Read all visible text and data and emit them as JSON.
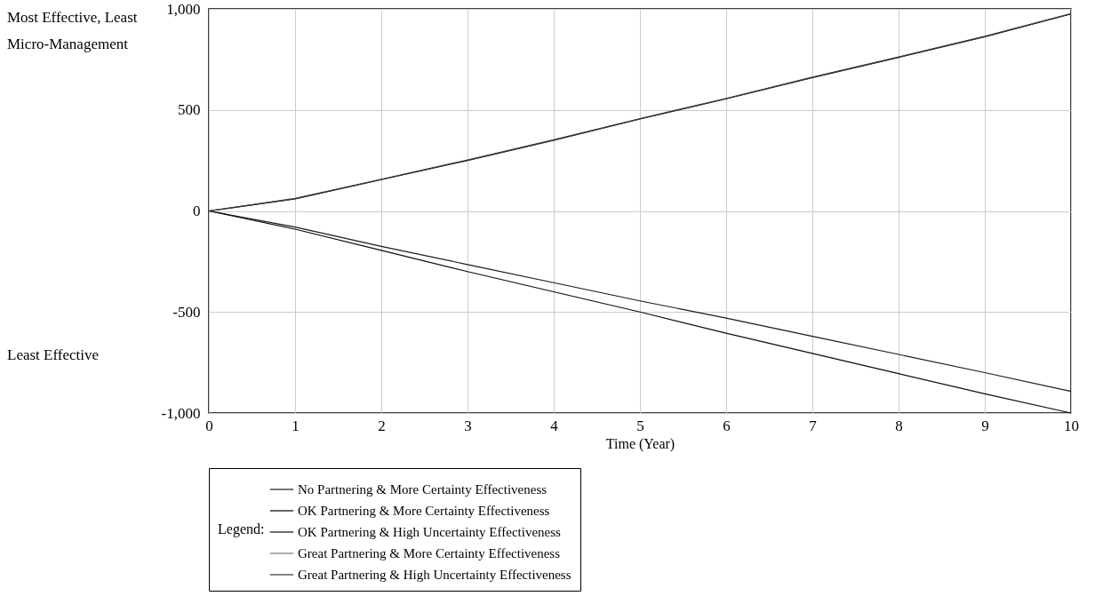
{
  "chart_data": {
    "type": "line",
    "xlabel": "Time (Year)",
    "legend_title": "Legend:",
    "annotations": [
      "Most Effective, Least Micro-Management",
      "Least Effective"
    ],
    "x": [
      0,
      1,
      2,
      3,
      4,
      5,
      6,
      7,
      8,
      9,
      10
    ],
    "xlim": [
      0,
      10
    ],
    "xticks": [
      0,
      1,
      2,
      3,
      4,
      5,
      6,
      7,
      8,
      9,
      10
    ],
    "ylim": [
      -1000,
      1000
    ],
    "yticks": [
      {
        "value": -1000,
        "label": "-1,000"
      },
      {
        "value": -500,
        "label": "-500"
      },
      0,
      {
        "value": 500,
        "label": "500"
      },
      {
        "value": 1000,
        "label": "1,000"
      }
    ],
    "grid": true,
    "legend": "bottom",
    "line_style": "solid",
    "series": [
      {
        "name": "No Partnering & More Certainty Effectiveness",
        "color": "#1a1a1a",
        "values": [
          0,
          -80,
          -175,
          -265,
          -355,
          -445,
          -530,
          -620,
          -710,
          -800,
          -893
        ]
      },
      {
        "name": "OK Partnering & More Certainty Effectiveness",
        "color": "#000000",
        "values": [
          0,
          60,
          155,
          250,
          350,
          455,
          555,
          660,
          760,
          862,
          975
        ]
      },
      {
        "name": "OK Partnering & High Uncertainty Effectiveness",
        "color": "#0d0d0d",
        "values": [
          0,
          -90,
          -195,
          -300,
          -400,
          -500,
          -605,
          -705,
          -805,
          -905,
          -1000
        ]
      },
      {
        "name": "Great Partnering & More Certainty Effectiveness",
        "color": "#777777",
        "values": [
          0,
          62,
          157,
          252,
          352,
          457,
          557,
          662,
          762,
          864,
          977
        ]
      },
      {
        "name": "Great Partnering & High Uncertainty Effectiveness",
        "color": "#333333",
        "values": [
          0,
          61,
          156,
          251,
          351,
          456,
          556,
          661,
          761,
          863,
          976
        ]
      }
    ]
  }
}
